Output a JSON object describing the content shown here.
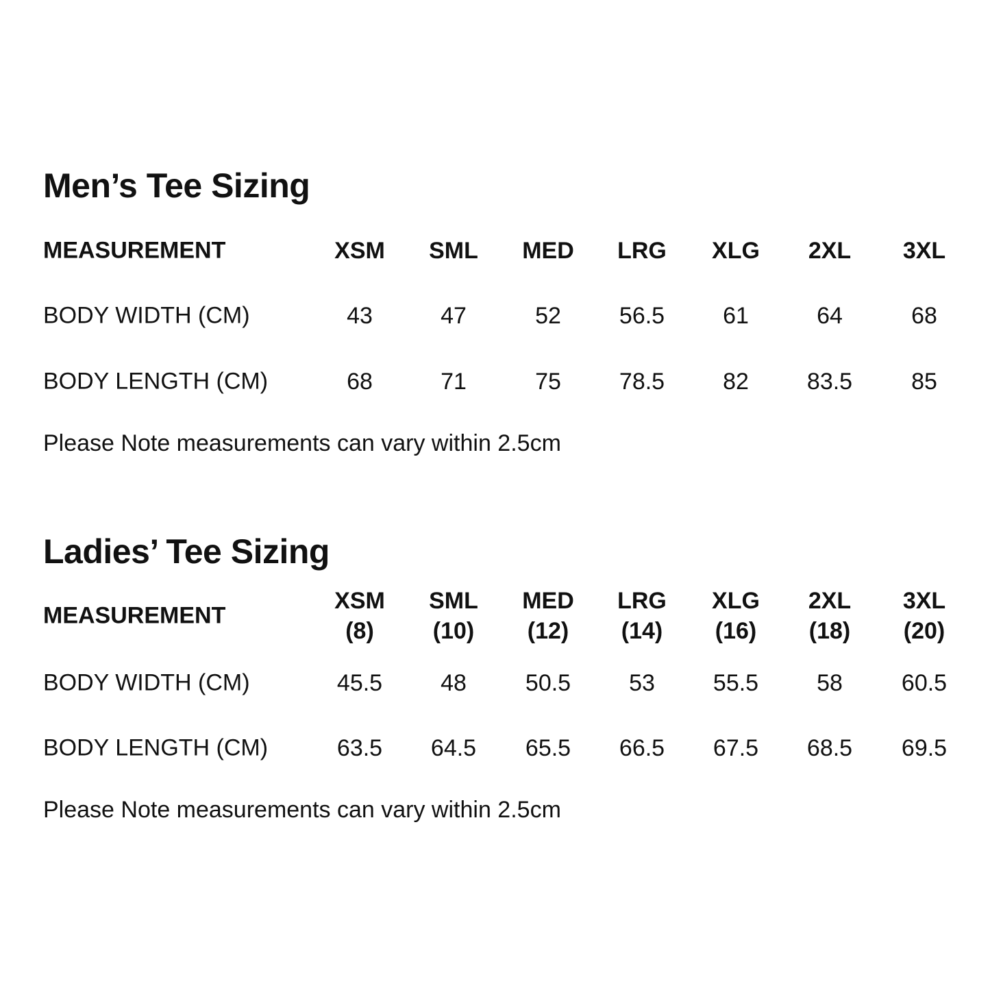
{
  "tables": [
    {
      "title": "Men’s Tee Sizing",
      "header_label": "MEASUREMENT",
      "columns": [
        "XSM",
        "SML",
        "MED",
        "LRG",
        "XLG",
        "2XL",
        "3XL"
      ],
      "rows": [
        {
          "label": "BODY WIDTH (CM)",
          "values": [
            "43",
            "47",
            "52",
            "56.5",
            "61",
            "64",
            "68"
          ]
        },
        {
          "label": "BODY LENGTH (CM)",
          "values": [
            "68",
            "71",
            "75",
            "78.5",
            "82",
            "83.5",
            "85"
          ]
        }
      ],
      "note": "Please Note measurements can vary within 2.5cm"
    },
    {
      "title": "Ladies’ Tee Sizing",
      "header_label": "MEASUREMENT",
      "columns": [
        "XSM\n(8)",
        "SML\n(10)",
        "MED\n(12)",
        "LRG\n(14)",
        "XLG\n(16)",
        "2XL\n(18)",
        "3XL\n(20)"
      ],
      "rows": [
        {
          "label": "BODY WIDTH (CM)",
          "values": [
            "45.5",
            "48",
            "50.5",
            "53",
            "55.5",
            "58",
            "60.5"
          ]
        },
        {
          "label": "BODY LENGTH (CM)",
          "values": [
            "63.5",
            "64.5",
            "65.5",
            "66.5",
            "67.5",
            "68.5",
            "69.5"
          ]
        }
      ],
      "note": "Please Note measurements can vary within 2.5cm"
    }
  ]
}
